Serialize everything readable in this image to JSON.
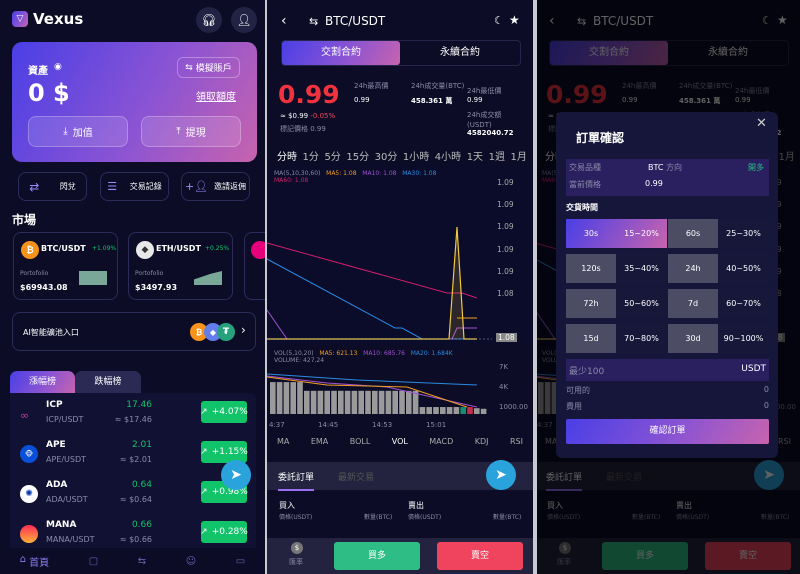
{
  "home": {
    "app_name": "Vexus",
    "asset_label": "資產",
    "asset_value": "0 $",
    "demo_account_label": "模擬賬戶",
    "claim_quota_label": "領取額度",
    "deposit_label": "加值",
    "withdraw_label": "提現",
    "actions": [
      {
        "label": "閃兌",
        "icon": "swap-icon"
      },
      {
        "label": "交易記錄",
        "icon": "records-icon"
      },
      {
        "label": "邀請返佣",
        "icon": "invite-icon"
      }
    ],
    "market_title": "市場",
    "market_cards": [
      {
        "pair": "BTC/USDT",
        "change": "+1.09%",
        "portfolio_label": "Portofolio",
        "value": "$69943.08",
        "coin_color": "#f7931a",
        "symbol": "₿"
      },
      {
        "pair": "ETH/USDT",
        "change": "+0.25%",
        "portfolio_label": "Portofolio",
        "value": "$3497.93",
        "coin_color": "#e8e8e8",
        "symbol": "◆"
      }
    ],
    "ai_entry_label": "AI智能礦池入口",
    "rank_tabs": [
      "漲幅榜",
      "跌幅榜"
    ],
    "gainers": [
      {
        "symbol": "ICP",
        "pair": "ICP/USDT",
        "price": "17.46",
        "usd": "≈ $17.46",
        "change": "+4.07%",
        "color": "#29abe2"
      },
      {
        "symbol": "APE",
        "pair": "APE/USDT",
        "price": "2.01",
        "usd": "≈ $2.01",
        "change": "+1.15%",
        "color": "#0a4fd8"
      },
      {
        "symbol": "ADA",
        "pair": "ADA/USDT",
        "price": "0.64",
        "usd": "≈ $0.64",
        "change": "+0.98%",
        "color": "#ffffff"
      },
      {
        "symbol": "MANA",
        "pair": "MANA/USDT",
        "price": "0.66",
        "usd": "≈ $0.66",
        "change": "+0.28%",
        "color": "#ff5c3a"
      }
    ],
    "nav": [
      {
        "label": "首頁",
        "icon": "home-icon"
      },
      {
        "label": "",
        "icon": "orders-icon"
      },
      {
        "label": "",
        "icon": "trade-icon"
      },
      {
        "label": "",
        "icon": "profile-icon"
      },
      {
        "label": "",
        "icon": "wallet-icon"
      }
    ]
  },
  "trade": {
    "pair": "BTC/USDT",
    "tabs": [
      "交割合約",
      "永續合約"
    ],
    "price": "0.99",
    "approx": "≈ $0.99",
    "change": "-0.05%",
    "mark_price": "標記價格 0.99",
    "stats": {
      "high_label": "24h最高價",
      "high": "0.99",
      "vol_btc_label": "24h成交量(BTC)",
      "vol_btc": "458.361 萬",
      "low_label": "24h最低價",
      "low": "0.99",
      "turnover_label": "24h成交額(USDT)",
      "turnover": "4582040.72"
    },
    "timeframes": [
      "分時",
      "1分",
      "5分",
      "15分",
      "30分",
      "1小時",
      "4小時",
      "1天",
      "1週",
      "1月"
    ],
    "ma_legend": {
      "label": "MA(5,10,30,60)",
      "ma5": "MA5: 1.08",
      "ma10": "MA10: 1.08",
      "ma30": "MA30: 1.08",
      "ma60": "MA60: 1.08"
    },
    "price_axis": [
      "1.09",
      "1.09",
      "1.09",
      "1.09",
      "1.09",
      "1.08",
      "1.08"
    ],
    "last_price_tag": "1.08",
    "vol_legend": {
      "label": "VOL(5,10,20)",
      "volume": "VOLUME: 427.24",
      "ma5": "MA5: 621.13",
      "ma10": "MA10: 685.76",
      "ma20": "MA20: 1.684K"
    },
    "vol_axis": [
      "7K",
      "4K",
      "1000.00"
    ],
    "time_axis": [
      "4:37",
      "14:45",
      "14:53",
      "15:01"
    ],
    "indicators": [
      "MA",
      "EMA",
      "BOLL",
      "VOL",
      "MACD",
      "KDJ",
      "RSI"
    ],
    "active_indicator": "VOL",
    "order_tabs": [
      "委託訂單",
      "最新交易"
    ],
    "book": {
      "buy": "買入",
      "sell": "賣出",
      "price_col": "價格(USDT)",
      "qty_col": "數量(BTC)"
    },
    "rate_label": "匯率",
    "buy_long": "買多",
    "sell_short": "賣空"
  },
  "modal": {
    "title": "訂單確認",
    "symbol_label": "交易品種",
    "symbol": "BTC",
    "direction_label": "方向",
    "direction": "開多",
    "current_price_label": "當前價格",
    "current_price": "0.99",
    "delivery_label": "交貨時間",
    "options": [
      {
        "time": "30s",
        "rate": "15~20%"
      },
      {
        "time": "60s",
        "rate": "25~30%"
      },
      {
        "time": "120s",
        "rate": "35~40%"
      },
      {
        "time": "24h",
        "rate": "40~50%"
      },
      {
        "time": "72h",
        "rate": "50~60%"
      },
      {
        "time": "7d",
        "rate": "60~70%"
      },
      {
        "time": "15d",
        "rate": "70~80%"
      },
      {
        "time": "30d",
        "rate": "90~100%"
      }
    ],
    "selected": "30s",
    "amount_placeholder": "最少100",
    "amount_unit": "USDT",
    "available_label": "可用的",
    "available": "0",
    "fee_label": "費用",
    "fee": "0",
    "confirm_label": "確認訂單"
  },
  "colors": {
    "up": "#11c46a",
    "down": "#f0445e",
    "accent_from": "#4a3fe6",
    "accent_to": "#c763ae",
    "bg": "#0c0c26"
  }
}
